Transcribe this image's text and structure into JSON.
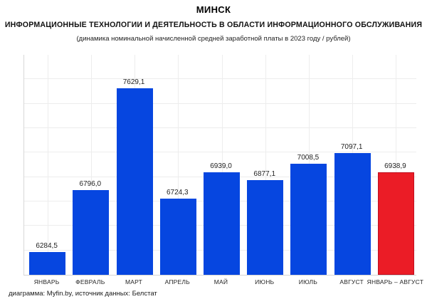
{
  "header": {
    "title": "МИНСК",
    "subtitle": "ИНФОРМАЦИОННЫЕ ТЕХНОЛОГИИ И ДЕЯТЕЛЬНОСТЬ В ОБЛАСТИ ИНФОРМАЦИОННОГО ОБСЛУЖИВАНИЯ",
    "note": "(динамика номинальной начисленной средней заработной платы в 2023 году / рублей)"
  },
  "footer": {
    "credit": "диаграмма: Myfin.by, источник данных: Белстат"
  },
  "colors": {
    "bar_blue": "#0646E0",
    "bar_red": "#EB1C26",
    "bar_red_border": "#C01020",
    "gridline": "#EDEDED",
    "axis": "#D8D8D8",
    "text": "#1F1F1F"
  },
  "chart_data": {
    "type": "bar",
    "title": "МИНСК",
    "subtitle": "ИНФОРМАЦИОННЫЕ ТЕХНОЛОГИИ И ДЕЯТЕЛЬНОСТЬ В ОБЛАСТИ ИНФОРМАЦИОННОГО ОБСЛУЖИВАНИЯ",
    "note": "(динамика номинальной начисленной средней заработной платы в 2023 году / рублей)",
    "xlabel": "",
    "ylabel": "",
    "categories": [
      "ЯНВАРЬ",
      "ФЕВРАЛЬ",
      "МАРТ",
      "АПРЕЛЬ",
      "МАЙ",
      "ИЮНЬ",
      "ИЮЛЬ",
      "АВГУСТ",
      "ЯНВАРЬ – АВГУСТ"
    ],
    "values": [
      6284.5,
      6796.0,
      7629.1,
      6724.3,
      6939.0,
      6877.1,
      7008.5,
      7097.1,
      6938.9
    ],
    "value_labels": [
      "6284,5",
      "6796,0",
      "7629,1",
      "6724,3",
      "6939,0",
      "6877,1",
      "7008,5",
      "7097,1",
      "6938,9"
    ],
    "bar_color_keys": [
      "bar_blue",
      "bar_blue",
      "bar_blue",
      "bar_blue",
      "bar_blue",
      "bar_blue",
      "bar_blue",
      "bar_blue",
      "bar_red"
    ],
    "highlight_index": 8,
    "ylim": [
      6100,
      7900
    ],
    "grid_step": 200,
    "grid": true,
    "vertical_grid": "category-centers",
    "legend": false,
    "y_axis_labels_visible": false,
    "data_labels_visible": true
  }
}
